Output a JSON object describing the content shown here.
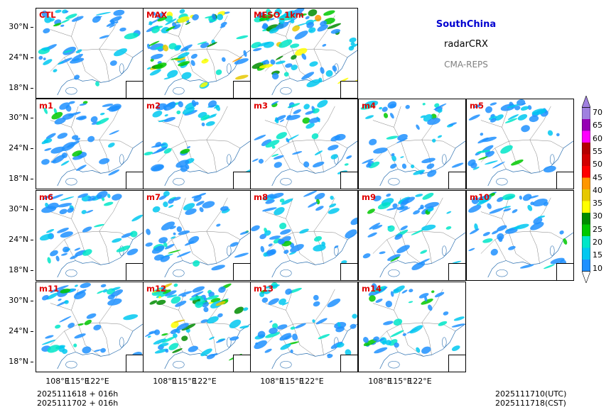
{
  "header": {
    "region": "SouthChina",
    "variable": "radarCRX",
    "system": "CMA-REPS"
  },
  "panels": [
    {
      "label": "CTL"
    },
    {
      "label": "MAX"
    },
    {
      "label": "MESO_1km"
    },
    {
      "label": "m1"
    },
    {
      "label": "m2"
    },
    {
      "label": "m3"
    },
    {
      "label": "m4"
    },
    {
      "label": "m5"
    },
    {
      "label": "m6"
    },
    {
      "label": "m7"
    },
    {
      "label": "m8"
    },
    {
      "label": "m9"
    },
    {
      "label": "m10"
    },
    {
      "label": "m11"
    },
    {
      "label": "m12"
    },
    {
      "label": "m13"
    },
    {
      "label": "m14"
    }
  ],
  "axes": {
    "lat_ticks": [
      "30°N",
      "24°N",
      "18°N"
    ],
    "lon_ticks": [
      "108°E",
      "115°E",
      "122°E"
    ]
  },
  "colorbar": {
    "levels": [
      "70",
      "65",
      "60",
      "55",
      "50",
      "45",
      "40",
      "35",
      "30",
      "25",
      "20",
      "15",
      "10"
    ],
    "colors": [
      "#1e90ff",
      "#00c8f0",
      "#00e6c8",
      "#00c800",
      "#008c00",
      "#ffff00",
      "#e6c800",
      "#ff9600",
      "#ff0000",
      "#d20000",
      "#b40000",
      "#ff00ff",
      "#9600b4",
      "#a080e0"
    ]
  },
  "footer": {
    "left_line1": "2025111618  +  016h",
    "left_line2": "2025111702  +  016h",
    "right_line1": "2025111710(UTC)",
    "right_line2": "2025111718(CST)"
  }
}
